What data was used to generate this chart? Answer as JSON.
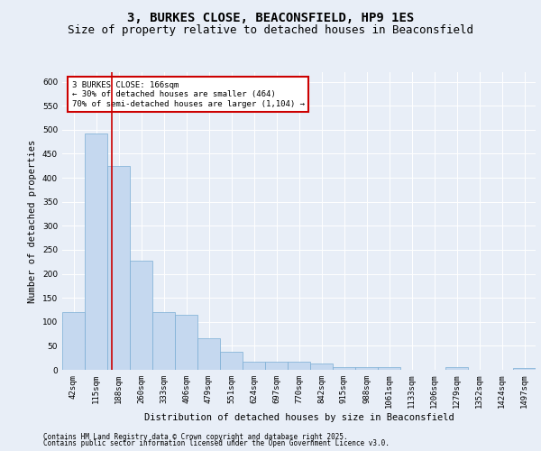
{
  "title1": "3, BURKES CLOSE, BEACONSFIELD, HP9 1ES",
  "title2": "Size of property relative to detached houses in Beaconsfield",
  "xlabel": "Distribution of detached houses by size in Beaconsfield",
  "ylabel": "Number of detached properties",
  "bar_color": "#c5d8ef",
  "bar_edge_color": "#7aadd4",
  "background_color": "#e8eef7",
  "grid_color": "#ffffff",
  "categories": [
    "42sqm",
    "115sqm",
    "188sqm",
    "260sqm",
    "333sqm",
    "406sqm",
    "479sqm",
    "551sqm",
    "624sqm",
    "697sqm",
    "770sqm",
    "842sqm",
    "915sqm",
    "988sqm",
    "1061sqm",
    "1133sqm",
    "1206sqm",
    "1279sqm",
    "1352sqm",
    "1424sqm",
    "1497sqm"
  ],
  "values": [
    120,
    493,
    424,
    228,
    120,
    115,
    65,
    38,
    17,
    17,
    17,
    14,
    5,
    5,
    5,
    0,
    0,
    5,
    0,
    0,
    4
  ],
  "annotation_text": "3 BURKES CLOSE: 166sqm\n← 30% of detached houses are smaller (464)\n70% of semi-detached houses are larger (1,104) →",
  "annotation_box_color": "#ffffff",
  "annotation_border_color": "#cc0000",
  "red_line_color": "#cc0000",
  "ylim": [
    0,
    620
  ],
  "yticks": [
    0,
    50,
    100,
    150,
    200,
    250,
    300,
    350,
    400,
    450,
    500,
    550,
    600
  ],
  "footer1": "Contains HM Land Registry data © Crown copyright and database right 2025.",
  "footer2": "Contains public sector information licensed under the Open Government Licence v3.0.",
  "title_fontsize": 10,
  "subtitle_fontsize": 9,
  "axis_label_fontsize": 7.5,
  "tick_fontsize": 6.5,
  "annotation_fontsize": 6.5,
  "footer_fontsize": 5.5
}
